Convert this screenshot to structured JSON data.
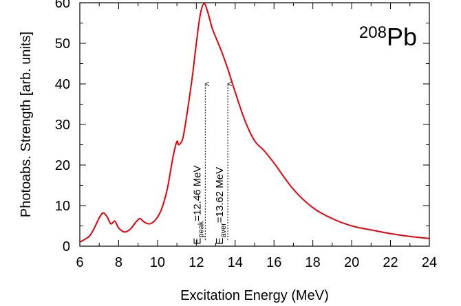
{
  "chart_data": {
    "type": "line",
    "title": "",
    "xlabel": "Excitation Energy (MeV)",
    "ylabel": "Photoabs. Strength [arb. units]",
    "xlim": [
      6,
      24
    ],
    "ylim": [
      0,
      60
    ],
    "grid": false,
    "legend": "none",
    "x_ticks": [
      "6",
      "8",
      "10",
      "12",
      "14",
      "16",
      "18",
      "20",
      "22",
      "24"
    ],
    "y_ticks": [
      "0",
      "10",
      "20",
      "30",
      "40",
      "50",
      "60"
    ],
    "series": [
      {
        "color": "#e8000b",
        "x": [
          6.0,
          6.5,
          6.8,
          7.0,
          7.2,
          7.4,
          7.6,
          7.8,
          8.0,
          8.3,
          8.6,
          8.9,
          9.1,
          9.3,
          9.6,
          9.9,
          10.2,
          10.5,
          10.8,
          11.0,
          11.1,
          11.3,
          11.5,
          11.8,
          12.0,
          12.2,
          12.4,
          12.6,
          12.8,
          13.0,
          13.3,
          13.6,
          14.0,
          14.5,
          15.0,
          15.5,
          16.0,
          17.0,
          18.0,
          19.0,
          20.0,
          21.0,
          22.0,
          23.0,
          24.0
        ],
        "y": [
          1.0,
          2.5,
          5.0,
          7.0,
          8.2,
          7.3,
          5.5,
          6.2,
          4.5,
          3.5,
          4.2,
          6.0,
          6.8,
          6.0,
          5.5,
          6.5,
          9.0,
          14.0,
          22.0,
          25.8,
          25.0,
          26.5,
          32.0,
          42.0,
          50.0,
          57.0,
          59.8,
          57.5,
          54.0,
          51.5,
          48.0,
          44.0,
          38.0,
          31.0,
          26.0,
          23.5,
          20.5,
          14.0,
          9.5,
          6.8,
          5.0,
          4.0,
          3.1,
          2.4,
          1.9
        ]
      }
    ],
    "annotations": [
      {
        "text": "=12.46 MeV",
        "symbol": "E",
        "subscript": "peak",
        "x": 12.46,
        "y_from": 1.5,
        "y_to": 40
      },
      {
        "text": "=13.62 MeV",
        "symbol": "E",
        "subscript": "aver",
        "x": 13.62,
        "y_from": 1.5,
        "y_to": 40
      }
    ],
    "nucleus_label": {
      "mass_number": "208",
      "element": "Pb"
    }
  }
}
